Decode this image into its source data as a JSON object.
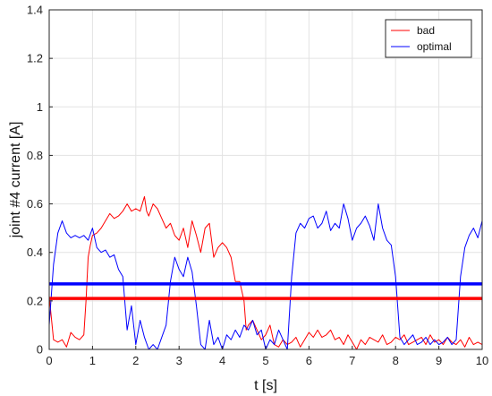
{
  "chart_data": {
    "type": "line",
    "title": "",
    "xlabel": "t [s]",
    "ylabel": "joint #4 current [A]",
    "xlim": [
      0,
      10
    ],
    "ylim": [
      0,
      1.4
    ],
    "xticks": [
      "0",
      "1",
      "2",
      "3",
      "4",
      "5",
      "6",
      "7",
      "8",
      "9",
      "10"
    ],
    "yticks": [
      "0",
      "0.2",
      "0.4",
      "0.6",
      "0.8",
      "1",
      "1.2",
      "1.4"
    ],
    "grid": true,
    "legend_position": "top-right",
    "series": [
      {
        "name": "bad",
        "color": "#ff0000",
        "x": [
          0,
          0.1,
          0.2,
          0.3,
          0.4,
          0.5,
          0.6,
          0.7,
          0.8,
          0.85,
          0.9,
          0.95,
          1.0,
          1.1,
          1.2,
          1.3,
          1.4,
          1.5,
          1.6,
          1.7,
          1.8,
          1.9,
          2.0,
          2.1,
          2.2,
          2.25,
          2.3,
          2.4,
          2.5,
          2.6,
          2.7,
          2.8,
          2.9,
          3.0,
          3.1,
          3.2,
          3.3,
          3.4,
          3.5,
          3.6,
          3.7,
          3.8,
          3.9,
          4.0,
          4.1,
          4.2,
          4.3,
          4.4,
          4.5,
          4.55,
          4.6,
          4.7,
          4.8,
          4.9,
          5.0,
          5.1,
          5.2,
          5.3,
          5.4,
          5.5,
          5.6,
          5.7,
          5.8,
          5.9,
          6.0,
          6.1,
          6.2,
          6.3,
          6.4,
          6.5,
          6.6,
          6.7,
          6.8,
          6.9,
          7.0,
          7.1,
          7.2,
          7.3,
          7.4,
          7.5,
          7.6,
          7.7,
          7.8,
          7.9,
          8.0,
          8.1,
          8.2,
          8.3,
          8.4,
          8.5,
          8.6,
          8.7,
          8.8,
          8.9,
          9.0,
          9.1,
          9.2,
          9.3,
          9.4,
          9.5,
          9.6,
          9.7,
          9.8,
          9.9,
          10.0
        ],
        "y": [
          0.22,
          0.04,
          0.03,
          0.04,
          0.01,
          0.07,
          0.05,
          0.04,
          0.06,
          0.2,
          0.38,
          0.43,
          0.47,
          0.48,
          0.5,
          0.53,
          0.56,
          0.54,
          0.55,
          0.57,
          0.6,
          0.57,
          0.58,
          0.57,
          0.63,
          0.57,
          0.55,
          0.6,
          0.58,
          0.54,
          0.5,
          0.52,
          0.47,
          0.45,
          0.5,
          0.42,
          0.53,
          0.47,
          0.4,
          0.5,
          0.52,
          0.38,
          0.42,
          0.44,
          0.42,
          0.38,
          0.28,
          0.28,
          0.2,
          0.08,
          0.1,
          0.12,
          0.08,
          0.04,
          0.06,
          0.1,
          0.02,
          0.01,
          0.04,
          0.02,
          0.03,
          0.05,
          0.01,
          0.04,
          0.07,
          0.05,
          0.08,
          0.05,
          0.06,
          0.08,
          0.04,
          0.05,
          0.02,
          0.06,
          0.03,
          0.0,
          0.04,
          0.02,
          0.05,
          0.04,
          0.03,
          0.06,
          0.02,
          0.03,
          0.05,
          0.04,
          0.06,
          0.02,
          0.03,
          0.04,
          0.05,
          0.02,
          0.06,
          0.03,
          0.04,
          0.02,
          0.05,
          0.03,
          0.02,
          0.04,
          0.01,
          0.05,
          0.02,
          0.03,
          0.02
        ]
      },
      {
        "name": "optimal",
        "color": "#0000ff",
        "x": [
          0,
          0.1,
          0.2,
          0.3,
          0.4,
          0.5,
          0.6,
          0.7,
          0.8,
          0.9,
          1.0,
          1.1,
          1.2,
          1.3,
          1.4,
          1.5,
          1.6,
          1.7,
          1.8,
          1.9,
          2.0,
          2.1,
          2.2,
          2.3,
          2.4,
          2.5,
          2.6,
          2.7,
          2.8,
          2.9,
          3.0,
          3.1,
          3.2,
          3.3,
          3.4,
          3.5,
          3.6,
          3.7,
          3.8,
          3.9,
          4.0,
          4.1,
          4.2,
          4.3,
          4.4,
          4.5,
          4.6,
          4.7,
          4.8,
          4.9,
          5.0,
          5.1,
          5.2,
          5.3,
          5.4,
          5.5,
          5.6,
          5.7,
          5.8,
          5.9,
          6.0,
          6.1,
          6.2,
          6.3,
          6.4,
          6.5,
          6.6,
          6.7,
          6.8,
          6.9,
          7.0,
          7.1,
          7.2,
          7.3,
          7.4,
          7.5,
          7.6,
          7.7,
          7.8,
          7.9,
          8.0,
          8.1,
          8.2,
          8.3,
          8.4,
          8.5,
          8.6,
          8.7,
          8.8,
          8.9,
          9.0,
          9.1,
          9.2,
          9.3,
          9.4,
          9.5,
          9.6,
          9.7,
          9.8,
          9.9,
          10.0
        ],
        "y": [
          0.1,
          0.35,
          0.48,
          0.53,
          0.48,
          0.46,
          0.47,
          0.46,
          0.47,
          0.45,
          0.5,
          0.42,
          0.4,
          0.41,
          0.38,
          0.39,
          0.33,
          0.3,
          0.08,
          0.18,
          0.02,
          0.12,
          0.05,
          0.0,
          0.02,
          0.0,
          0.05,
          0.1,
          0.28,
          0.38,
          0.33,
          0.3,
          0.38,
          0.32,
          0.18,
          0.02,
          0.0,
          0.12,
          0.02,
          0.05,
          0.0,
          0.06,
          0.04,
          0.08,
          0.05,
          0.1,
          0.08,
          0.12,
          0.06,
          0.08,
          0.0,
          0.04,
          0.02,
          0.08,
          0.04,
          0.0,
          0.3,
          0.48,
          0.52,
          0.5,
          0.54,
          0.55,
          0.5,
          0.52,
          0.57,
          0.49,
          0.52,
          0.5,
          0.6,
          0.54,
          0.45,
          0.5,
          0.52,
          0.55,
          0.51,
          0.45,
          0.6,
          0.5,
          0.45,
          0.43,
          0.3,
          0.05,
          0.02,
          0.04,
          0.06,
          0.02,
          0.03,
          0.05,
          0.02,
          0.04,
          0.02,
          0.03,
          0.05,
          0.02,
          0.04,
          0.3,
          0.42,
          0.47,
          0.5,
          0.46,
          0.53
        ]
      },
      {
        "name": "",
        "color": "#ff0000",
        "x": [
          0,
          10
        ],
        "y": [
          0.21,
          0.21
        ]
      },
      {
        "name": "",
        "color": "#0000ff",
        "x": [
          0,
          10
        ],
        "y": [
          0.27,
          0.27
        ]
      }
    ]
  }
}
